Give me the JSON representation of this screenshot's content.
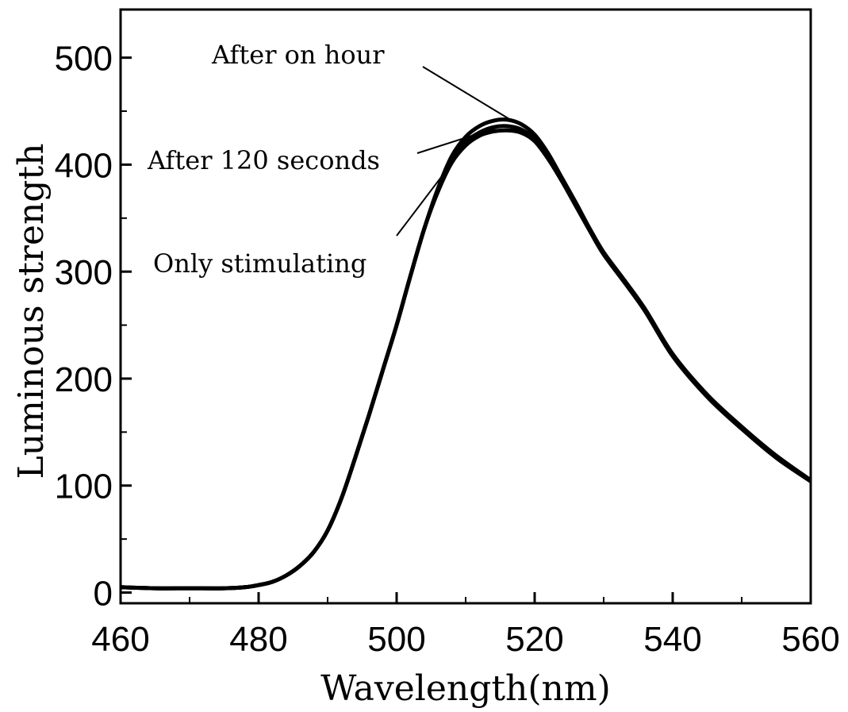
{
  "chart_data": {
    "type": "line",
    "xlabel": "Wavelength(nm)",
    "ylabel": "Luminous strength",
    "xlim": [
      460,
      560
    ],
    "ylim": [
      -10,
      545
    ],
    "xticks": [
      460,
      480,
      500,
      520,
      540,
      560
    ],
    "xtick_labels": [
      "460",
      "480",
      "500",
      "520",
      "540",
      "560"
    ],
    "yticks": [
      0,
      100,
      200,
      300,
      400,
      500
    ],
    "ytick_labels": [
      "0",
      "100",
      "200",
      "300",
      "400",
      "500"
    ],
    "grid": false,
    "legend": "none",
    "series": [
      {
        "label": "After on hour",
        "x": [
          460,
          465,
          470,
          475,
          478,
          480,
          482,
          484,
          486,
          488,
          490,
          492,
          494,
          496,
          498,
          500,
          502,
          504,
          506,
          508,
          510,
          512,
          514,
          516,
          518,
          520,
          522,
          524,
          526,
          528,
          530,
          533,
          536,
          540,
          545,
          550,
          555,
          560
        ],
        "y": [
          5,
          4,
          4,
          4,
          5,
          7,
          10,
          16,
          25,
          38,
          58,
          88,
          126,
          166,
          208,
          250,
          296,
          340,
          378,
          408,
          426,
          436,
          441,
          442,
          438,
          428,
          410,
          387,
          364,
          340,
          318,
          292,
          265,
          223,
          185,
          155,
          128,
          105
        ]
      },
      {
        "label": "After 120 seconds",
        "x": [
          460,
          465,
          470,
          475,
          478,
          480,
          482,
          484,
          486,
          488,
          490,
          492,
          494,
          496,
          498,
          500,
          502,
          504,
          506,
          508,
          510,
          512,
          514,
          516,
          518,
          520,
          522,
          524,
          526,
          528,
          530,
          533,
          536,
          540,
          545,
          550,
          555,
          560
        ],
        "y": [
          5,
          4,
          4,
          4,
          5,
          7,
          10,
          16,
          25,
          38,
          58,
          88,
          126,
          166,
          208,
          250,
          296,
          340,
          376,
          404,
          421,
          430,
          435,
          436,
          433,
          424,
          407,
          385,
          362,
          339,
          317,
          291,
          264,
          222,
          184,
          154,
          127,
          104
        ]
      },
      {
        "label": "Only stimulating",
        "x": [
          460,
          465,
          470,
          475,
          478,
          480,
          482,
          484,
          486,
          488,
          490,
          492,
          494,
          496,
          498,
          500,
          502,
          504,
          506,
          508,
          510,
          512,
          514,
          516,
          518,
          520,
          522,
          524,
          526,
          528,
          530,
          533,
          536,
          540,
          545,
          550,
          555,
          560
        ],
        "y": [
          5,
          4,
          4,
          4,
          5,
          7,
          10,
          16,
          25,
          38,
          58,
          88,
          126,
          166,
          208,
          250,
          296,
          340,
          375,
          402,
          418,
          427,
          431,
          432,
          430,
          422,
          405,
          384,
          361,
          338,
          316,
          290,
          263,
          221,
          183,
          153,
          126,
          104
        ]
      }
    ],
    "annotations": [
      {
        "text": "After on hour",
        "series": 0,
        "at_x": 517
      },
      {
        "text": "After 120 seconds",
        "series": 1,
        "at_x": 515
      },
      {
        "text": "Only stimulating",
        "series": 2,
        "at_x": 509
      }
    ]
  }
}
